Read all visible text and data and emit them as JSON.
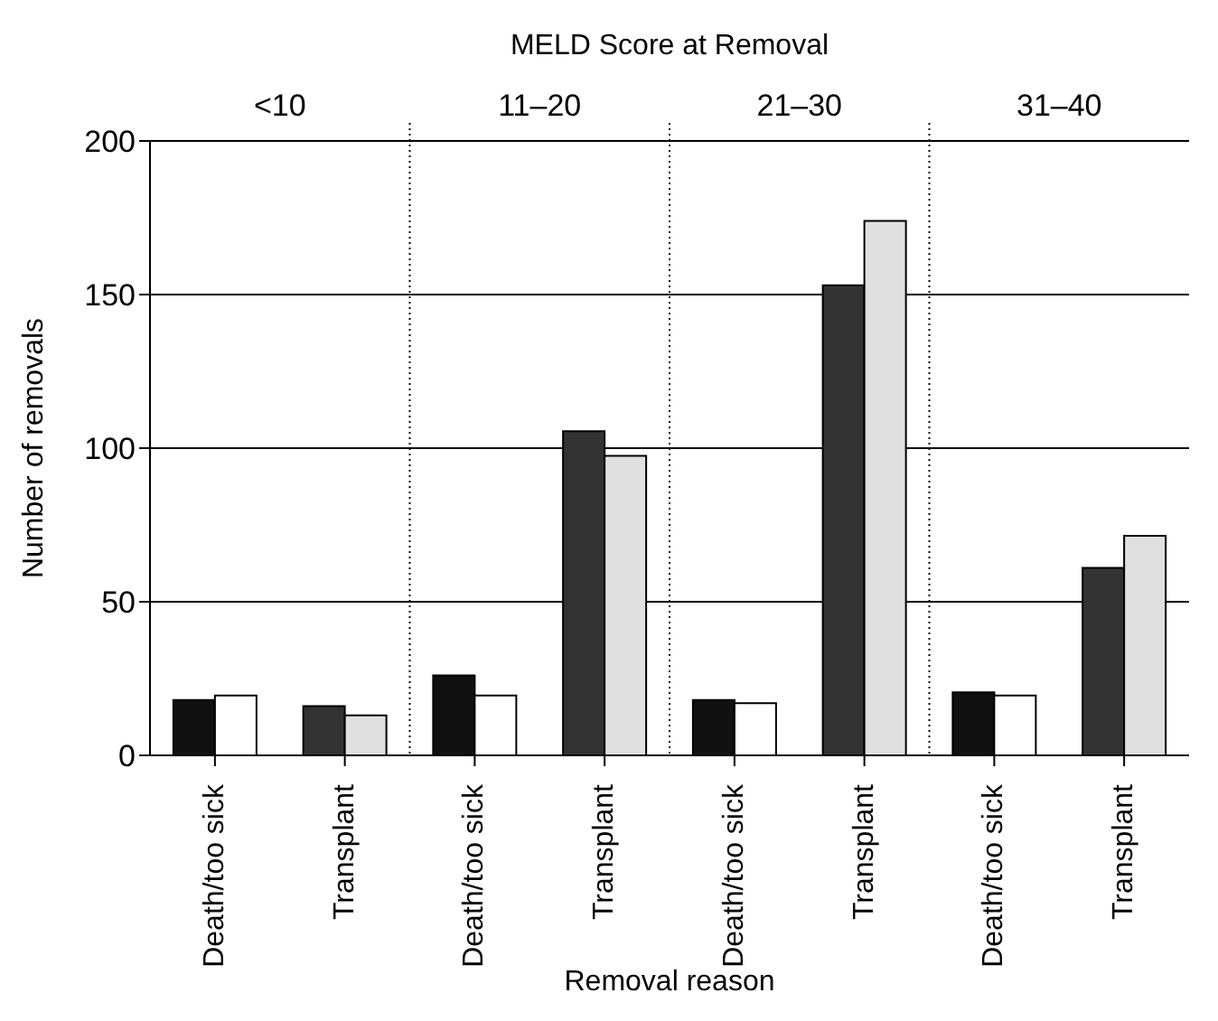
{
  "chart_data": {
    "type": "bar",
    "x2label": "MELD Score at Removal",
    "annotations": [
      "<10",
      "11–20",
      "21–30",
      "31–40"
    ],
    "xlabel": "Removal reason",
    "ylabel": "Number of removals",
    "categories": [
      "Death/too sick",
      "Transplant",
      "Death/too sick",
      "Transplant",
      "Death/too sick",
      "Transplant",
      "Death/too sick",
      "Transplant"
    ],
    "series": [
      {
        "colors": [
          "#111111",
          "#333333",
          "#111111",
          "#333333",
          "#111111",
          "#333333",
          "#111111",
          "#333333"
        ],
        "values": [
          18,
          16,
          26,
          105.5,
          18,
          153,
          20.5,
          61
        ]
      },
      {
        "colors": [
          "#ffffff",
          "#e0e0e0",
          "#ffffff",
          "#e0e0e0",
          "#ffffff",
          "#e0e0e0",
          "#ffffff",
          "#e0e0e0"
        ],
        "values": [
          19.5,
          13,
          19.5,
          97.5,
          17,
          174,
          19.5,
          71.5
        ]
      }
    ],
    "ylim": [
      0,
      200
    ],
    "yticks": [
      0,
      50,
      100,
      150,
      200
    ],
    "grid": "y"
  }
}
